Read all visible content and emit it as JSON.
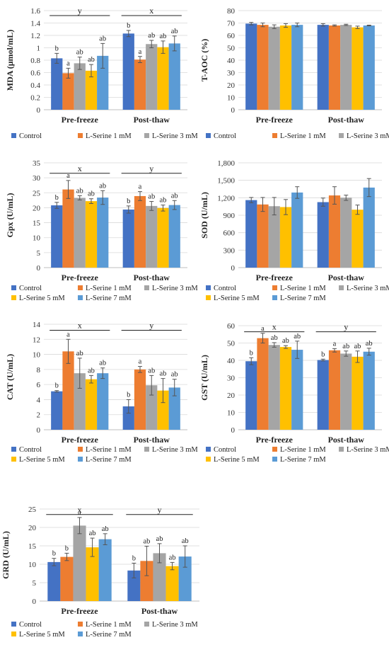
{
  "colors": {
    "Control": "#4472C4",
    "L-Serine 1 mM": "#ED7D31",
    "L-Serine 3 mM": "#A5A5A5",
    "L-Serine 5 mM": "#FFC000",
    "L-Serine 7 mM": "#5B9BD5"
  },
  "chart_data": [
    {
      "id": "mda",
      "type": "bar",
      "ylabel": "MDA (μmol/mL)",
      "ylim": [
        0,
        1.6
      ],
      "yticks": [
        "0",
        "0.2",
        "0.4",
        "0.6",
        "0.8",
        "1",
        "1.2",
        "1.4",
        "1.6"
      ],
      "categories": [
        "Pre-freeze",
        "Post-thaw"
      ],
      "series": [
        {
          "name": "Control",
          "values": [
            0.83,
            1.23
          ],
          "errors": [
            0.08,
            0.05
          ],
          "labels": [
            "b",
            "b"
          ]
        },
        {
          "name": "L-Serine 1 mM",
          "values": [
            0.59,
            0.81
          ],
          "errors": [
            0.08,
            0.05
          ],
          "labels": [
            "a",
            "a"
          ]
        },
        {
          "name": "L-Serine 3 mM",
          "values": [
            0.75,
            1.06
          ],
          "errors": [
            0.1,
            0.06
          ],
          "labels": [
            "ab",
            "ab"
          ]
        },
        {
          "name": "L-Serine 5 mM",
          "values": [
            0.63,
            1.01
          ],
          "errors": [
            0.1,
            0.1
          ],
          "labels": [
            "ab",
            "ab"
          ]
        },
        {
          "name": "L-Serine 7 mM",
          "values": [
            0.87,
            1.07
          ],
          "errors": [
            0.2,
            0.12
          ],
          "labels": [
            "ab",
            "ab"
          ]
        }
      ],
      "group_letters": [
        "y",
        "x"
      ],
      "group_line_value": 1.52,
      "legend": [
        "Control",
        "L-Serine 1 mM",
        "L-Serine 3 mM"
      ]
    },
    {
      "id": "taoc",
      "type": "bar",
      "ylabel": "T-AOC (%)",
      "ylim": [
        0,
        80
      ],
      "yticks": [
        "0",
        "10",
        "20",
        "30",
        "40",
        "50",
        "60",
        "70",
        "80"
      ],
      "categories": [
        "Pre-freeze",
        "Post-thaw"
      ],
      "series": [
        {
          "name": "Control",
          "values": [
            69.5,
            68.5
          ],
          "errors": [
            1,
            1
          ],
          "labels": [
            "",
            ""
          ]
        },
        {
          "name": "L-Serine 1 mM",
          "values": [
            68.5,
            68
          ],
          "errors": [
            1.5,
            0.5
          ],
          "labels": [
            "",
            ""
          ]
        },
        {
          "name": "L-Serine 3 mM",
          "values": [
            67,
            68.5
          ],
          "errors": [
            1.5,
            0.5
          ],
          "labels": [
            "",
            ""
          ]
        },
        {
          "name": "L-Serine 5 mM",
          "values": [
            68,
            66.5
          ],
          "errors": [
            1.5,
            1
          ],
          "labels": [
            "",
            ""
          ]
        },
        {
          "name": "L-Serine 7 mM",
          "values": [
            68.5,
            68
          ],
          "errors": [
            1.5,
            0.3
          ],
          "labels": [
            "",
            ""
          ]
        }
      ],
      "group_letters": [
        "",
        ""
      ],
      "group_line_value": null,
      "legend": [
        "Control",
        "L-Serine 1 mM",
        "L-Serine 3 mM"
      ]
    },
    {
      "id": "gpx",
      "type": "bar",
      "ylabel": "Gpx (U/mL)",
      "ylim": [
        0,
        35
      ],
      "yticks": [
        "0",
        "5",
        "10",
        "15",
        "20",
        "25",
        "30",
        "35"
      ],
      "categories": [
        "Pre-freeze",
        "Post-thaw"
      ],
      "series": [
        {
          "name": "Control",
          "values": [
            20.8,
            19.4
          ],
          "errors": [
            1,
            1.2
          ],
          "labels": [
            "b",
            "b"
          ]
        },
        {
          "name": "L-Serine 1 mM",
          "values": [
            26.1,
            23.9
          ],
          "errors": [
            3,
            1.5
          ],
          "labels": [
            "a",
            "a"
          ]
        },
        {
          "name": "L-Serine 3 mM",
          "values": [
            23.3,
            20.6
          ],
          "errors": [
            0.7,
            1.5
          ],
          "labels": [
            "ab",
            "ab"
          ]
        },
        {
          "name": "L-Serine 5 mM",
          "values": [
            22.2,
            19.9
          ],
          "errors": [
            0.8,
            1
          ],
          "labels": [
            "ab",
            "ab"
          ]
        },
        {
          "name": "L-Serine 7 mM",
          "values": [
            23.4,
            20.9
          ],
          "errors": [
            2.3,
            1.5
          ],
          "labels": [
            "ab",
            "ab"
          ]
        }
      ],
      "group_letters": [
        "x",
        "y"
      ],
      "group_line_value": 31.5,
      "legend": [
        "Control",
        "L-Serine 1 mM",
        "L-Serine 3 mM",
        "L-Serine 5 mM",
        "L-Serine 7 mM"
      ]
    },
    {
      "id": "sod",
      "type": "bar",
      "ylabel": "SOD (U/mL)",
      "ylim": [
        0,
        1800
      ],
      "yticks": [
        "0",
        "300",
        "600",
        "900",
        "1,200",
        "1,500",
        "1,800"
      ],
      "categories": [
        "Pre-freeze",
        "Post-thaw"
      ],
      "series": [
        {
          "name": "Control",
          "values": [
            1160,
            1125
          ],
          "errors": [
            45,
            70
          ],
          "labels": [
            "",
            ""
          ]
        },
        {
          "name": "L-Serine 1 mM",
          "values": [
            1085,
            1240
          ],
          "errors": [
            120,
            150
          ],
          "labels": [
            "",
            ""
          ]
        },
        {
          "name": "L-Serine 3 mM",
          "values": [
            1055,
            1200
          ],
          "errors": [
            150,
            45
          ],
          "labels": [
            "",
            ""
          ]
        },
        {
          "name": "L-Serine 5 mM",
          "values": [
            1040,
            995
          ],
          "errors": [
            130,
            80
          ],
          "labels": [
            "",
            ""
          ]
        },
        {
          "name": "L-Serine 7 mM",
          "values": [
            1290,
            1375
          ],
          "errors": [
            100,
            155
          ],
          "labels": [
            "",
            ""
          ]
        }
      ],
      "group_letters": [
        "",
        ""
      ],
      "group_line_value": null,
      "legend": [
        "Control",
        "L-Serine 1 mM",
        "L-Serine 3 mM",
        "L-Serine 5 mM",
        "L-Serine 7 mM"
      ]
    },
    {
      "id": "cat",
      "type": "bar",
      "ylabel": "CAT (U/mL)",
      "ylim": [
        0,
        14
      ],
      "yticks": [
        "0",
        "2",
        "4",
        "6",
        "8",
        "10",
        "12",
        "14"
      ],
      "categories": [
        "Pre-freeze",
        "Post-thaw"
      ],
      "series": [
        {
          "name": "Control",
          "values": [
            5.1,
            3.1
          ],
          "errors": [
            0.1,
            0.9
          ],
          "labels": [
            "b",
            "b"
          ]
        },
        {
          "name": "L-Serine 1 mM",
          "values": [
            10.4,
            8.0
          ],
          "errors": [
            1.6,
            0.4
          ],
          "labels": [
            "a",
            "a"
          ]
        },
        {
          "name": "L-Serine 3 mM",
          "values": [
            7.5,
            5.9
          ],
          "errors": [
            2,
            1.3
          ],
          "labels": [
            "ab",
            "ab"
          ]
        },
        {
          "name": "L-Serine 5 mM",
          "values": [
            6.7,
            5.2
          ],
          "errors": [
            0.5,
            1.6
          ],
          "labels": [
            "ab",
            "ab"
          ]
        },
        {
          "name": "L-Serine 7 mM",
          "values": [
            7.5,
            5.6
          ],
          "errors": [
            0.7,
            1.1
          ],
          "labels": [
            "ab",
            "ab"
          ]
        }
      ],
      "group_letters": [
        "x",
        "y"
      ],
      "group_line_value": 13.2,
      "legend": [
        "Control",
        "L-Serine 1 mM",
        "L-Serine 3 mM",
        "L-Serine 5 mM",
        "L-Serine 7 mM"
      ]
    },
    {
      "id": "gst",
      "type": "bar",
      "ylabel": "GST (U/mL)",
      "ylim": [
        0,
        60
      ],
      "yticks": [
        "0",
        "10",
        "20",
        "30",
        "40",
        "50",
        "60"
      ],
      "categories": [
        "Pre-freeze",
        "Post-thaw"
      ],
      "series": [
        {
          "name": "Control",
          "values": [
            39.5,
            40.2
          ],
          "errors": [
            2,
            0.5
          ],
          "labels": [
            "b",
            "b"
          ]
        },
        {
          "name": "L-Serine 1 mM",
          "values": [
            52.8,
            45.8
          ],
          "errors": [
            2.8,
            1
          ],
          "labels": [
            "a",
            "a"
          ]
        },
        {
          "name": "L-Serine 3 mM",
          "values": [
            48.9,
            43.9
          ],
          "errors": [
            1.3,
            1.5
          ],
          "labels": [
            "ab",
            "ab"
          ]
        },
        {
          "name": "L-Serine 5 mM",
          "values": [
            47.7,
            42.1
          ],
          "errors": [
            0.8,
            3.3
          ],
          "labels": [
            "ab",
            "ab"
          ]
        },
        {
          "name": "L-Serine 7 mM",
          "values": [
            46.1,
            45.0
          ],
          "errors": [
            5,
            2
          ],
          "labels": [
            "ab",
            "ab"
          ]
        }
      ],
      "group_letters": [
        "x",
        "y"
      ],
      "group_line_value": 56.5,
      "legend": [
        "Control",
        "L-Serine 1 mM",
        "L-Serine 3 mM",
        "L-Serine 5 mM",
        "L-Serine 7 mM"
      ]
    },
    {
      "id": "grd",
      "type": "bar",
      "ylabel": "GRD (U/mL)",
      "ylim": [
        0,
        25
      ],
      "yticks": [
        "0",
        "5",
        "10",
        "15",
        "20",
        "25"
      ],
      "categories": [
        "Pre-freeze",
        "Post-thaw"
      ],
      "series": [
        {
          "name": "Control",
          "values": [
            10.6,
            8.3
          ],
          "errors": [
            1,
            2
          ],
          "labels": [
            "b",
            "b"
          ]
        },
        {
          "name": "L-Serine 1 mM",
          "values": [
            12.0,
            10.9
          ],
          "errors": [
            1,
            4
          ],
          "labels": [
            "b",
            "ab"
          ]
        },
        {
          "name": "L-Serine 3 mM",
          "values": [
            20.5,
            13.0
          ],
          "errors": [
            2.2,
            2.6
          ],
          "labels": [
            "a",
            "ab"
          ]
        },
        {
          "name": "L-Serine 5 mM",
          "values": [
            14.6,
            9.5
          ],
          "errors": [
            2.5,
            1
          ],
          "labels": [
            "ab",
            "ab"
          ]
        },
        {
          "name": "L-Serine 7 mM",
          "values": [
            16.8,
            12.1
          ],
          "errors": [
            1.5,
            2.9
          ],
          "labels": [
            "ab",
            "ab"
          ]
        }
      ],
      "group_letters": [
        "x",
        "y"
      ],
      "group_line_value": 23.5,
      "legend": [
        "Control",
        "L-Serine 1 mM",
        "L-Serine 3 mM",
        "L-Serine 5 mM",
        "L-Serine 7 mM"
      ]
    }
  ]
}
